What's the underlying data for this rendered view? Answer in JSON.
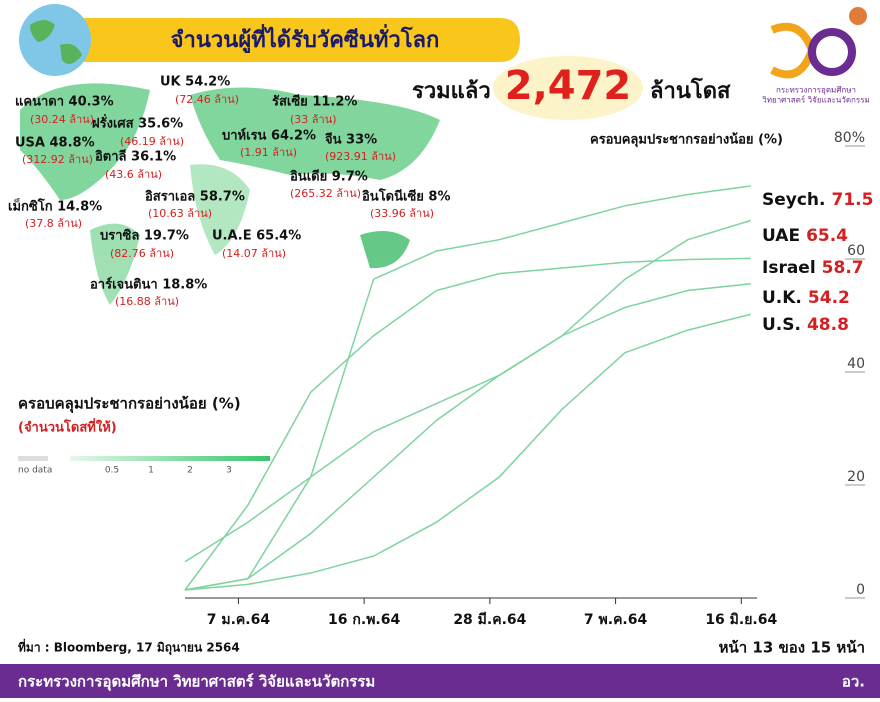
{
  "header": {
    "title": "จำนวนผู้ที่ได้รับวัคซีนทั่วโลก",
    "total_prefix": "รวมแล้ว",
    "total": "2,472",
    "total_suffix": "ล้านโดส"
  },
  "logo": {
    "line1": "กระทรวงการอุดมศึกษา",
    "line2": "วิทยาศาสตร์ วิจัยและนวัตกรรม"
  },
  "map": {
    "labels": [
      {
        "name": "UK 54.2%",
        "doses": "(72.46 ล้าน)"
      },
      {
        "name": "แคนาดา 40.3%",
        "doses": "(30.24 ล้าน)"
      },
      {
        "name": "รัสเซีย 11.2%",
        "doses": "(33 ล้าน)"
      },
      {
        "name": "ฝรั่งเศส 35.6%",
        "doses": "(46.19 ล้าน)"
      },
      {
        "name": "บาห์เรน 64.2%",
        "doses": "(1.91 ล้าน)"
      },
      {
        "name": "จีน 33%",
        "doses": "(923.91 ล้าน)"
      },
      {
        "name": "USA 48.8%",
        "doses": "(312.92 ล้าน)"
      },
      {
        "name": "อิตาลี 36.1%",
        "doses": "(43.6 ล้าน)"
      },
      {
        "name": "อินเดีย 9.7%",
        "doses": "(265.32 ล้าน)"
      },
      {
        "name": "อิสราเอล 58.7%",
        "doses": "(10.63 ล้าน)"
      },
      {
        "name": "อินโดนีเซีย 8%",
        "doses": "(33.96 ล้าน)"
      },
      {
        "name": "เม็กซิโก 14.8%",
        "doses": "(37.8 ล้าน)"
      },
      {
        "name": "บราซิล 19.7%",
        "doses": "(82.76 ล้าน)"
      },
      {
        "name": "U.A.E 65.4%",
        "doses": "(14.07 ล้าน)"
      },
      {
        "name": "อาร์เจนตินา 18.8%",
        "doses": "(16.88 ล้าน)"
      }
    ]
  },
  "legend": {
    "title": "ครอบคลุมประชากรอย่างน้อย (%)",
    "subtitle": "(จำนวนโดสที่ให้)",
    "no_data": "no data",
    "ticks": [
      "0.5",
      "1",
      "2",
      "3"
    ]
  },
  "chart_data": {
    "type": "line",
    "y_label": "ครอบคลุมประชากรอย่างน้อย (%)",
    "x": [
      -10,
      10,
      30,
      50,
      70,
      90,
      110,
      130,
      150,
      170
    ],
    "xlim": [
      -10,
      172
    ],
    "xticks": [
      {
        "value": 7,
        "label": "7 ม.ค.64"
      },
      {
        "value": 47,
        "label": "16 ก.พ.64"
      },
      {
        "value": 87,
        "label": "28 มี.ค.64"
      },
      {
        "value": 127,
        "label": "7 พ.ค.64"
      },
      {
        "value": 167,
        "label": "16 มิ.ย.64"
      }
    ],
    "ylim": [
      0,
      80
    ],
    "yticks": [
      0,
      20,
      40,
      60,
      {
        "value": 80,
        "label": "80%"
      }
    ],
    "series": [
      {
        "name": "Seych.",
        "color": "#7fd3a0",
        "values": [
          0,
          2,
          20,
          55,
          60,
          62,
          65,
          68,
          70,
          71.5
        ],
        "value_labels": [
          null,
          null,
          null,
          null,
          null,
          null,
          null,
          null,
          null,
          "71.5"
        ]
      },
      {
        "name": "UAE",
        "color": "#7fd3a0",
        "values": [
          5,
          12,
          20,
          28,
          33,
          38,
          45,
          55,
          62,
          65.4
        ],
        "value_labels": [
          null,
          null,
          null,
          null,
          null,
          null,
          null,
          null,
          null,
          "65.4"
        ]
      },
      {
        "name": "Israel",
        "color": "#7fd3a0",
        "values": [
          0,
          15,
          35,
          45,
          53,
          56,
          57,
          58,
          58.5,
          58.7
        ],
        "value_labels": [
          null,
          null,
          null,
          null,
          null,
          null,
          null,
          null,
          null,
          "58.7"
        ]
      },
      {
        "name": "U.K.",
        "color": "#7fd3a0",
        "values": [
          0,
          2,
          10,
          20,
          30,
          38,
          45,
          50,
          53,
          54.2
        ],
        "value_labels": [
          null,
          null,
          null,
          null,
          null,
          null,
          null,
          null,
          null,
          "54.2"
        ]
      },
      {
        "name": "U.S.",
        "color": "#7fd3a0",
        "values": [
          0,
          1,
          3,
          6,
          12,
          20,
          32,
          42,
          46,
          48.8
        ],
        "value_labels": [
          null,
          null,
          null,
          null,
          null,
          null,
          null,
          null,
          null,
          "48.8"
        ]
      }
    ]
  },
  "source": "ที่มา : Bloomberg, 17 มิถุนายน 2564",
  "page": "หน้า 13 ของ 15 หน้า",
  "footer": {
    "ministry": "กระทรวงการอุดมศึกษา วิทยาศาสตร์ วิจัยและนวัตกรรม",
    "abbr": "อว."
  }
}
